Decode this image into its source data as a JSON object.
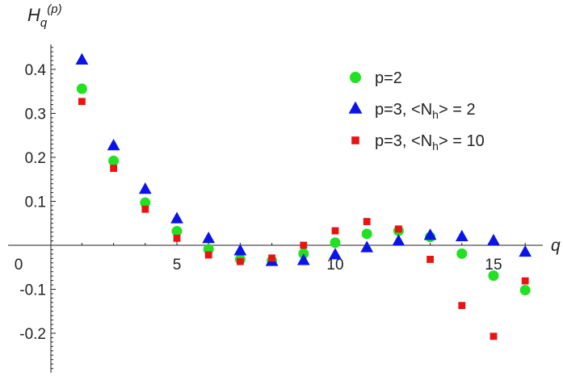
{
  "chart_data": {
    "type": "scatter",
    "title": "",
    "ylabel": "H_q^(p)",
    "ylabel_parts": {
      "base": "H",
      "sub": "q",
      "sup": "(p)"
    },
    "xlabel": "q",
    "xlim": [
      0,
      16.8
    ],
    "ylim": [
      -0.29,
      0.46
    ],
    "x_ticks": [
      0,
      5,
      10,
      15
    ],
    "x_tick_labels": [
      "0",
      "5",
      "10",
      "15"
    ],
    "y_ticks": [
      -0.2,
      -0.1,
      0.1,
      0.2,
      0.3,
      0.4
    ],
    "y_tick_labels": [
      "-0.2",
      "-0.1",
      "0.1",
      "0.2",
      "0.3",
      "0.4"
    ],
    "legend_position": "top-right",
    "grid": false,
    "series": [
      {
        "name": "p=2",
        "label_parts": {
          "text": "p=2"
        },
        "marker": "circle",
        "color": "#22e022",
        "x": [
          2,
          3,
          4,
          5,
          6,
          7,
          8,
          9,
          10,
          11,
          12,
          13,
          14,
          15,
          16
        ],
        "y": [
          0.356,
          0.192,
          0.097,
          0.032,
          -0.009,
          -0.032,
          -0.035,
          -0.019,
          0.006,
          0.026,
          0.033,
          0.019,
          -0.019,
          -0.069,
          -0.102
        ]
      },
      {
        "name": "p=3, <Nh> = 2",
        "label_parts": {
          "pre": "p=3, <N",
          "sub": "h",
          "post": "> = 2"
        },
        "marker": "triangle",
        "color": "#0a14e8",
        "x": [
          2,
          3,
          4,
          5,
          6,
          7,
          8,
          9,
          10,
          11,
          12,
          13,
          14,
          15,
          16
        ],
        "y": [
          0.421,
          0.226,
          0.127,
          0.06,
          0.015,
          -0.013,
          -0.037,
          -0.035,
          -0.022,
          -0.006,
          0.009,
          0.022,
          0.019,
          0.01,
          -0.016
        ]
      },
      {
        "name": "p=3, <Nh> = 10",
        "label_parts": {
          "pre": "p=3, <N",
          "sub": "h",
          "post": "> = 10"
        },
        "marker": "square",
        "color": "#e81414",
        "x": [
          2,
          3,
          4,
          5,
          6,
          7,
          8,
          9,
          10,
          11,
          12,
          13,
          14,
          15,
          16
        ],
        "y": [
          0.327,
          0.175,
          0.082,
          0.016,
          -0.022,
          -0.037,
          -0.029,
          0.0,
          0.033,
          0.054,
          0.037,
          -0.032,
          -0.137,
          -0.207,
          -0.081
        ]
      }
    ]
  }
}
